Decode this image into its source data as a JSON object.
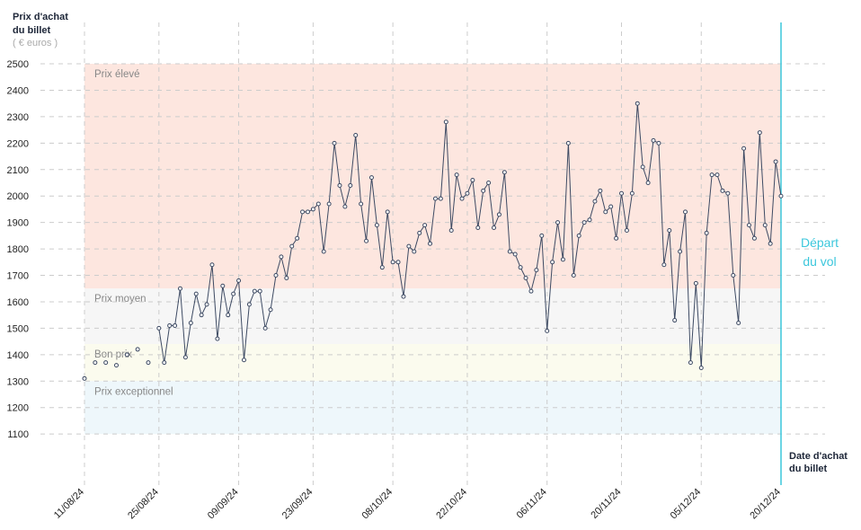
{
  "chart_data": {
    "type": "line",
    "y_label": [
      "Prix d'achat",
      "du billet"
    ],
    "y_unit": "( € euros )",
    "x_label": [
      "Date d'achat",
      "du billet"
    ],
    "annotation": [
      "Départ",
      "du vol"
    ],
    "categories": [
      "11/08/24",
      null,
      null,
      null,
      null,
      null,
      null,
      null,
      null,
      null,
      null,
      null,
      null,
      null,
      "25/08/24",
      null,
      null,
      null,
      null,
      null,
      null,
      null,
      null,
      null,
      null,
      null,
      null,
      null,
      null,
      "09/09/24",
      null,
      null,
      null,
      null,
      null,
      null,
      null,
      null,
      null,
      null,
      null,
      null,
      null,
      "23/09/24",
      null,
      null,
      null,
      null,
      null,
      null,
      null,
      null,
      null,
      null,
      null,
      null,
      null,
      null,
      "08/10/24",
      null,
      null,
      null,
      null,
      null,
      null,
      null,
      null,
      null,
      null,
      null,
      null,
      null,
      "22/10/24",
      null,
      null,
      null,
      null,
      null,
      null,
      null,
      null,
      null,
      null,
      null,
      null,
      null,
      null,
      "06/11/24",
      null,
      null,
      null,
      null,
      null,
      null,
      null,
      null,
      null,
      null,
      null,
      null,
      null,
      "20/11/24",
      null,
      null,
      null,
      null,
      null,
      null,
      null,
      null,
      null,
      null,
      null,
      null,
      null,
      null,
      "05/12/24",
      null,
      null,
      null,
      null,
      null,
      null,
      null,
      null,
      null,
      null,
      null,
      null,
      null,
      null,
      "20/12/24"
    ],
    "series": [
      {
        "color": "#3d4a63",
        "values": [
          1310,
          null,
          1370,
          null,
          1370,
          null,
          1360,
          null,
          1400,
          null,
          1420,
          null,
          1370,
          null,
          1500,
          1370,
          1510,
          1510,
          1650,
          1390,
          1520,
          1630,
          1550,
          1590,
          1740,
          1460,
          1660,
          1550,
          1630,
          1680,
          1380,
          1590,
          1640,
          1640,
          1500,
          1570,
          1700,
          1770,
          1690,
          1810,
          1840,
          1940,
          1940,
          1950,
          1970,
          1790,
          1970,
          2200,
          2040,
          1960,
          2040,
          2230,
          1970,
          1830,
          2070,
          1890,
          1730,
          1940,
          1750,
          1750,
          1620,
          1810,
          1790,
          1860,
          1890,
          1820,
          1990,
          1990,
          2280,
          1870,
          2080,
          1990,
          2010,
          2060,
          1880,
          2020,
          2050,
          1880,
          1930,
          2090,
          1790,
          1780,
          1730,
          1690,
          1640,
          1720,
          1850,
          1490,
          1750,
          1900,
          1760,
          2200,
          1700,
          1850,
          1900,
          1910,
          1980,
          2020,
          1940,
          1960,
          1840,
          2010,
          1870,
          2010,
          2350,
          2110,
          2050,
          2210,
          2200,
          1740,
          1870,
          1530,
          1790,
          1940,
          1370,
          1670,
          1350,
          1860,
          2080,
          2080,
          2020,
          2010,
          1700,
          1520,
          2180,
          1890,
          1840,
          2240,
          1890,
          1820,
          2130,
          2000
        ]
      }
    ],
    "bands": [
      {
        "label": "Prix élevé",
        "from": 1650,
        "to": 2500,
        "color": "#fde6df"
      },
      {
        "label": "Prix moyen",
        "from": 1440,
        "to": 1650,
        "color": "#f6f6f6"
      },
      {
        "label": "Bon prix",
        "from": 1300,
        "to": 1440,
        "color": "#fbfbee"
      },
      {
        "label": "Prix exceptionnel",
        "from": 1100,
        "to": 1300,
        "color": "#eef7fb"
      }
    ],
    "ylim": [
      900,
      2600
    ],
    "yticks": [
      1100,
      1200,
      1300,
      1400,
      1500,
      1600,
      1700,
      1800,
      1900,
      2000,
      2100,
      2200,
      2300,
      2400,
      2500
    ],
    "grid": true,
    "departure_color": "#3cc7dc"
  }
}
